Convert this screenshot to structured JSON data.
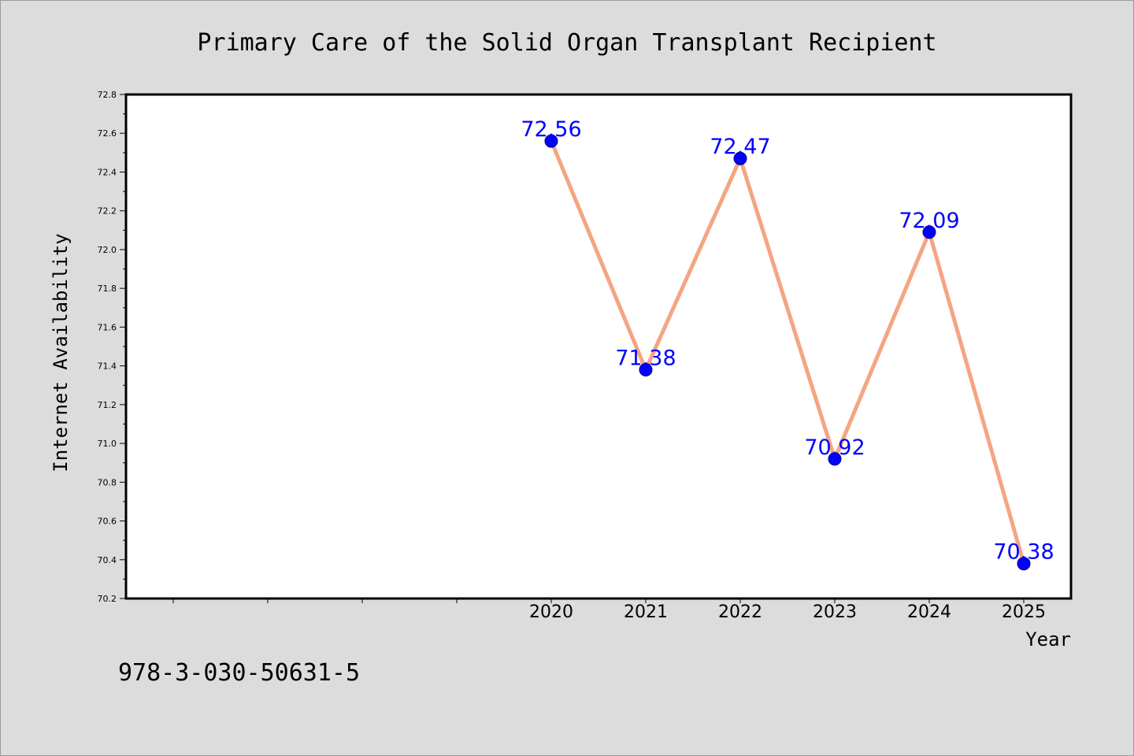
{
  "chart_data": {
    "type": "line",
    "title": "Primary Care of the Solid Organ Transplant Recipient",
    "xlabel": "Year",
    "ylabel": "Internet Availability",
    "x": [
      "2020",
      "2021",
      "2022",
      "2023",
      "2024",
      "2025"
    ],
    "series": [
      {
        "values": [
          72.56,
          71.38,
          72.47,
          70.92,
          72.09,
          70.38
        ]
      }
    ],
    "data_labels": [
      "72.56",
      "71.38",
      "72.47",
      "70.92",
      "72.09",
      "70.38"
    ],
    "yticks": [
      "70.2",
      "70.4",
      "70.6",
      "70.8",
      "71.0",
      "71.2",
      "71.4",
      "71.6",
      "71.8",
      "72.0",
      "72.2",
      "72.4",
      "72.6",
      "72.8"
    ],
    "ylim": [
      70.2,
      72.8
    ],
    "grid": false,
    "legend": "none",
    "colors": {
      "line": "#f4a582",
      "marker": "#0000ff",
      "data_label": "#0000ff",
      "background": "#dcdcdc",
      "plot_area": "#ffffff"
    }
  },
  "footer": {
    "text": "978-3-030-50631-5"
  }
}
